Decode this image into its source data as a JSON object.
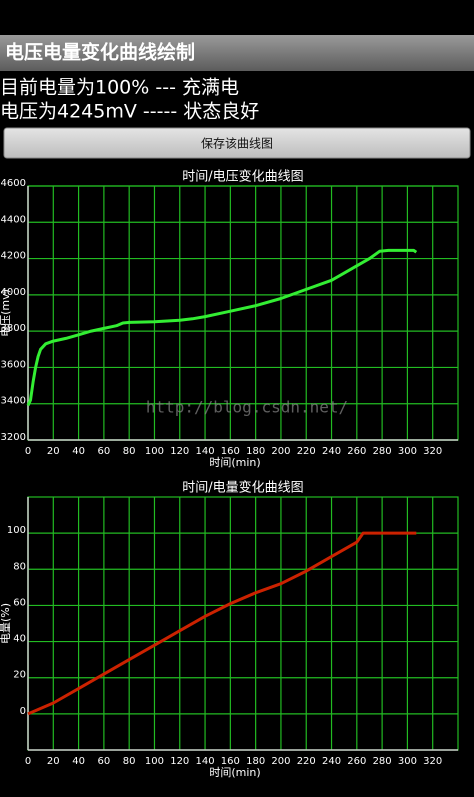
{
  "header": {
    "title": "电压电量变化曲线绘制"
  },
  "status": {
    "lines": [
      "目前电量为100% --- 充满电",
      "电压为4245mV ----- 状态良好"
    ]
  },
  "button": {
    "label": "保存该曲线图"
  },
  "watermark": "http://blog.csdn.net/",
  "chart_data": [
    {
      "type": "line",
      "title": "时间/电压变化曲线图",
      "x_label": "时间(min)",
      "y_label": "电压(mv)",
      "x": [
        0,
        2,
        4,
        6,
        8,
        10,
        14,
        20,
        30,
        40,
        50,
        60,
        70,
        75,
        80,
        100,
        120,
        130,
        140,
        160,
        180,
        200,
        220,
        240,
        250,
        260,
        270,
        278,
        285,
        300,
        305,
        307
      ],
      "values": [
        3390,
        3420,
        3520,
        3600,
        3660,
        3700,
        3730,
        3745,
        3760,
        3780,
        3800,
        3815,
        3830,
        3845,
        3848,
        3852,
        3860,
        3868,
        3880,
        3910,
        3940,
        3980,
        4030,
        4080,
        4120,
        4160,
        4200,
        4240,
        4245,
        4245,
        4245,
        4235
      ],
      "color": "#33ee33",
      "grid_color": "#22bb22",
      "xlim": [
        0,
        340
      ],
      "xticks": [
        0,
        20,
        40,
        60,
        80,
        100,
        120,
        140,
        160,
        180,
        200,
        220,
        240,
        260,
        280,
        300,
        320
      ],
      "ylim": [
        3200,
        4600
      ],
      "yticks": [
        3200,
        3400,
        3600,
        3800,
        4000,
        4200,
        4400,
        4600
      ],
      "grid": true
    },
    {
      "type": "line",
      "title": "时间/电量变化曲线图",
      "x_label": "时间(min)",
      "y_label": "电量(%)",
      "x": [
        0,
        20,
        40,
        60,
        80,
        100,
        120,
        140,
        160,
        180,
        200,
        220,
        240,
        260,
        265,
        300,
        307
      ],
      "values": [
        0,
        6,
        14,
        22,
        30,
        38,
        46,
        54,
        61,
        67,
        72,
        79,
        87,
        95,
        100,
        100,
        100
      ],
      "color": "#cc2200",
      "grid_color": "#22bb22",
      "xlim": [
        0,
        340
      ],
      "xticks": [
        0,
        20,
        40,
        60,
        80,
        100,
        120,
        140,
        160,
        180,
        200,
        220,
        240,
        260,
        280,
        300,
        320
      ],
      "ylim": [
        -20,
        120
      ],
      "yticks": [
        0,
        20,
        40,
        60,
        80,
        100
      ],
      "grid": true
    }
  ]
}
